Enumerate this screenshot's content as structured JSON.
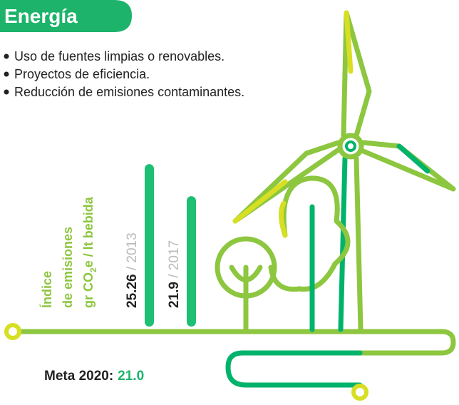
{
  "header": {
    "title": "Energía"
  },
  "bullets": [
    "Uso de fuentes limpias o renovables.",
    "Proyectos de eficiencia.",
    "Reducción de emisiones contaminantes."
  ],
  "indicator": {
    "label_lines": [
      "Índice",
      "de emisiones"
    ],
    "unit_parts": [
      "gr CO",
      "2",
      "e / lt bebida"
    ],
    "bars": [
      {
        "value": 25.26,
        "year_label": " / 2013"
      },
      {
        "value": 21.9,
        "year_label": " / 2017"
      }
    ]
  },
  "goal": {
    "label": "Meta 2020:",
    "value_text": "21.0"
  }
}
